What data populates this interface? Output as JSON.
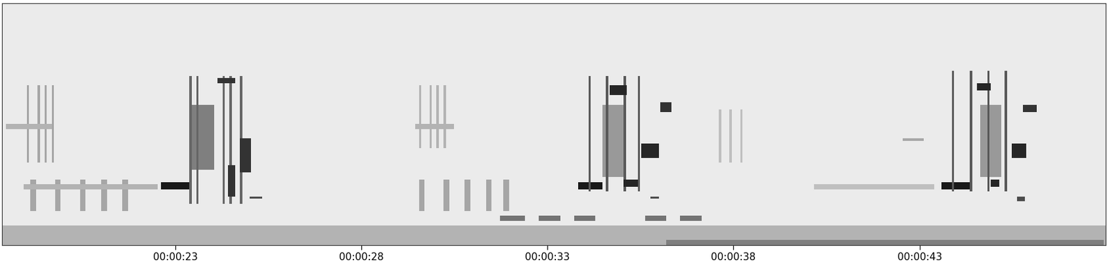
{
  "chart_data": {
    "type": "spectrogram",
    "tick_labels": "x",
    "xlim": [
      18.35,
      48.0
    ],
    "ylim": [
      0,
      1
    ],
    "xticks": [
      {
        "value": 23,
        "label": "00:00:23"
      },
      {
        "value": 28,
        "label": "00:00:28"
      },
      {
        "value": 33,
        "label": "00:00:33"
      },
      {
        "value": 38,
        "label": "00:00:38"
      },
      {
        "value": 43,
        "label": "00:00:43"
      }
    ],
    "events": [
      [
        18.35,
        48.0,
        0.0,
        0.08,
        0.3
      ],
      [
        36.19,
        47.95,
        0.0,
        0.02,
        0.5
      ],
      [
        19.01,
        19.07,
        0.34,
        0.66,
        0.35
      ],
      [
        19.3,
        19.36,
        0.34,
        0.66,
        0.35
      ],
      [
        19.49,
        19.55,
        0.34,
        0.66,
        0.35
      ],
      [
        19.68,
        19.74,
        0.34,
        0.66,
        0.35
      ],
      [
        18.45,
        19.68,
        0.48,
        0.5,
        0.3
      ],
      [
        19.11,
        19.26,
        0.14,
        0.27,
        0.35
      ],
      [
        19.77,
        19.92,
        0.14,
        0.27,
        0.35
      ],
      [
        20.44,
        20.59,
        0.14,
        0.27,
        0.35
      ],
      [
        21.01,
        21.16,
        0.14,
        0.27,
        0.35
      ],
      [
        21.58,
        21.73,
        0.14,
        0.27,
        0.35
      ],
      [
        18.92,
        22.52,
        0.23,
        0.25,
        0.3
      ],
      [
        23.38,
        24.04,
        0.31,
        0.58,
        0.5
      ],
      [
        22.62,
        23.38,
        0.23,
        0.26,
        0.9
      ],
      [
        23.38,
        23.44,
        0.17,
        0.7,
        0.6
      ],
      [
        23.57,
        23.63,
        0.17,
        0.7,
        0.6
      ],
      [
        24.27,
        24.33,
        0.17,
        0.7,
        0.6
      ],
      [
        24.46,
        24.52,
        0.17,
        0.7,
        0.6
      ],
      [
        24.74,
        24.8,
        0.17,
        0.7,
        0.6
      ],
      [
        24.14,
        24.61,
        0.67,
        0.69,
        0.8
      ],
      [
        24.74,
        25.03,
        0.3,
        0.44,
        0.8
      ],
      [
        24.99,
        25.33,
        0.19,
        0.2,
        0.7
      ],
      [
        24.42,
        24.61,
        0.2,
        0.33,
        0.8
      ],
      [
        29.55,
        29.61,
        0.4,
        0.66,
        0.3
      ],
      [
        29.83,
        29.89,
        0.4,
        0.66,
        0.3
      ],
      [
        30.02,
        30.08,
        0.4,
        0.66,
        0.3
      ],
      [
        30.21,
        30.27,
        0.4,
        0.66,
        0.3
      ],
      [
        29.45,
        30.49,
        0.48,
        0.5,
        0.3
      ],
      [
        29.55,
        29.7,
        0.14,
        0.27,
        0.35
      ],
      [
        30.21,
        30.36,
        0.14,
        0.27,
        0.35
      ],
      [
        30.78,
        30.93,
        0.14,
        0.27,
        0.35
      ],
      [
        31.35,
        31.5,
        0.14,
        0.27,
        0.35
      ],
      [
        31.82,
        31.97,
        0.14,
        0.27,
        0.35
      ],
      [
        34.48,
        35.05,
        0.28,
        0.58,
        0.4
      ],
      [
        33.82,
        34.48,
        0.23,
        0.26,
        0.9
      ],
      [
        34.1,
        34.16,
        0.22,
        0.7,
        0.65
      ],
      [
        34.57,
        34.63,
        0.22,
        0.7,
        0.65
      ],
      [
        35.05,
        35.11,
        0.22,
        0.7,
        0.65
      ],
      [
        35.43,
        35.49,
        0.22,
        0.7,
        0.65
      ],
      [
        34.67,
        35.14,
        0.62,
        0.66,
        0.85
      ],
      [
        35.05,
        35.43,
        0.24,
        0.27,
        0.85
      ],
      [
        35.52,
        36.0,
        0.36,
        0.42,
        0.85
      ],
      [
        36.04,
        36.34,
        0.55,
        0.59,
        0.8
      ],
      [
        35.77,
        36.0,
        0.19,
        0.2,
        0.7
      ],
      [
        31.73,
        32.39,
        0.1,
        0.12,
        0.55
      ],
      [
        32.77,
        33.34,
        0.1,
        0.12,
        0.55
      ],
      [
        33.72,
        34.29,
        0.1,
        0.12,
        0.55
      ],
      [
        35.62,
        36.19,
        0.1,
        0.12,
        0.55
      ],
      [
        36.57,
        37.14,
        0.1,
        0.12,
        0.55
      ],
      [
        37.61,
        37.67,
        0.34,
        0.56,
        0.25
      ],
      [
        37.89,
        37.95,
        0.34,
        0.56,
        0.25
      ],
      [
        38.18,
        38.24,
        0.34,
        0.56,
        0.25
      ],
      [
        40.17,
        43.4,
        0.23,
        0.25,
        0.25
      ],
      [
        42.54,
        43.11,
        0.43,
        0.44,
        0.35
      ],
      [
        44.63,
        45.2,
        0.28,
        0.58,
        0.4
      ],
      [
        43.59,
        44.35,
        0.23,
        0.26,
        0.9
      ],
      [
        43.87,
        43.93,
        0.22,
        0.72,
        0.65
      ],
      [
        44.35,
        44.41,
        0.22,
        0.72,
        0.65
      ],
      [
        44.82,
        44.88,
        0.22,
        0.72,
        0.65
      ],
      [
        45.29,
        45.35,
        0.22,
        0.72,
        0.65
      ],
      [
        44.54,
        44.92,
        0.64,
        0.67,
        0.85
      ],
      [
        44.92,
        45.14,
        0.24,
        0.27,
        0.85
      ],
      [
        45.48,
        45.86,
        0.36,
        0.42,
        0.85
      ],
      [
        45.77,
        46.15,
        0.55,
        0.58,
        0.8
      ],
      [
        45.62,
        45.83,
        0.18,
        0.2,
        0.7
      ]
    ]
  }
}
